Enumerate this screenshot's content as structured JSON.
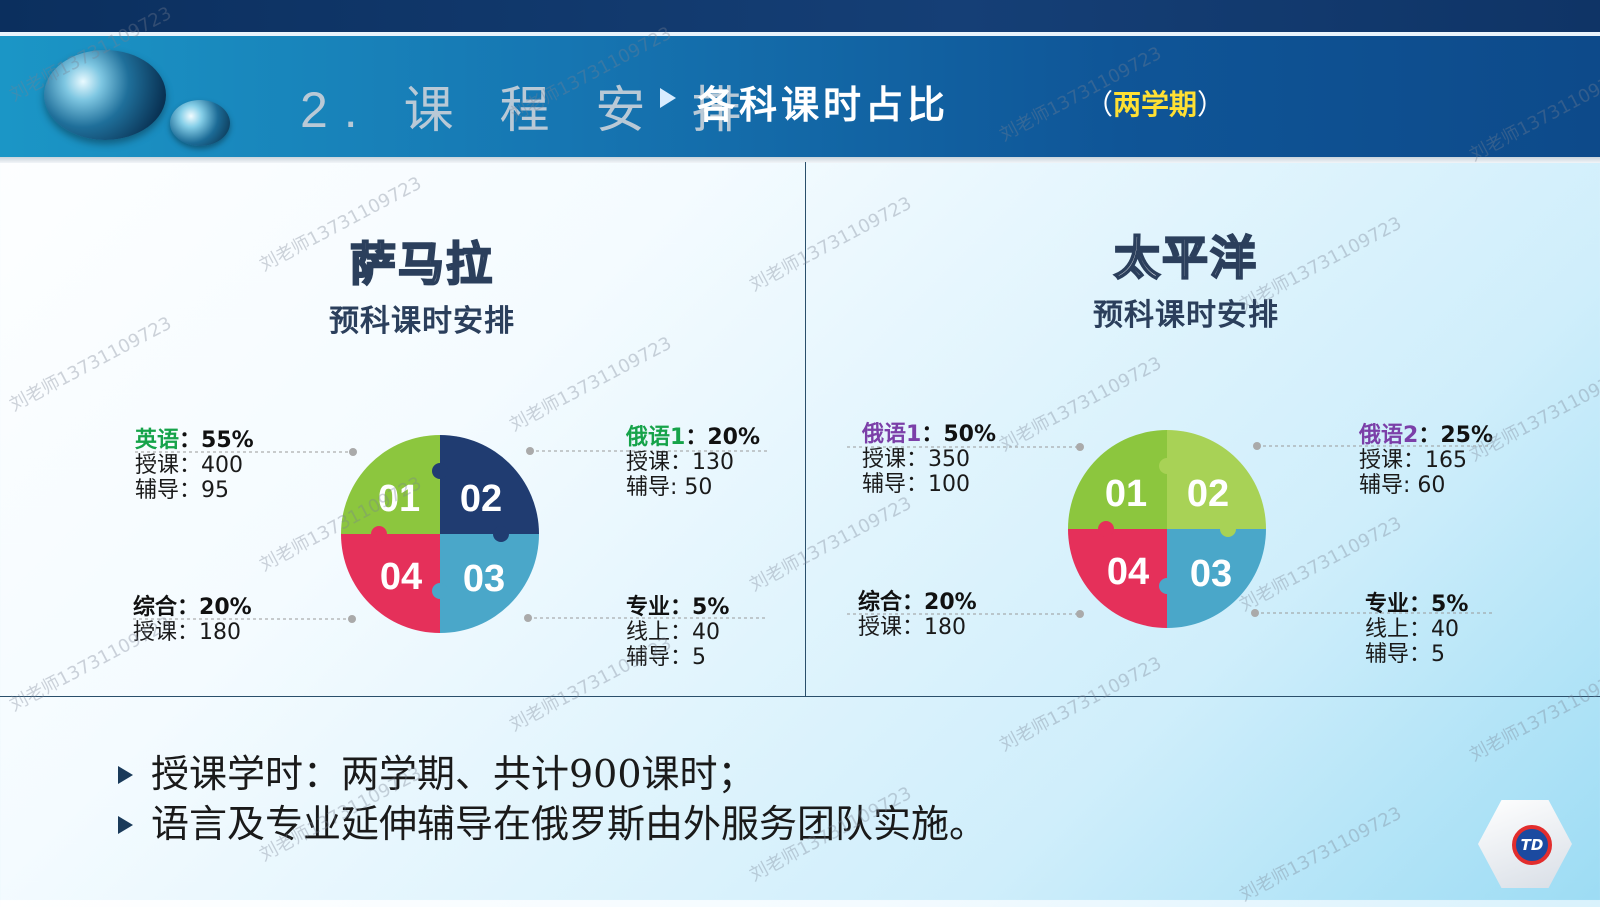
{
  "header": {
    "section_title": "2. 课 程 安 排",
    "subtitle": "各科课时占比",
    "subtitle_paren_open": "（",
    "subtitle_paren_text": "两学期",
    "subtitle_paren_close": "）"
  },
  "colors": {
    "green": "#8cc63e",
    "light_green": "#a8d256",
    "navy": "#203c71",
    "teal": "#4aa7c9",
    "red": "#e5305a",
    "label_green": "#16a34a",
    "label_purple": "#7b3fa8"
  },
  "campuses": [
    {
      "name": "萨马拉",
      "subtitle": "预科课时安排",
      "puzzle": {
        "pieces": [
          {
            "label": "01",
            "color": "#8cc63e"
          },
          {
            "label": "02",
            "color": "#203c71"
          },
          {
            "label": "03",
            "color": "#4aa7c9"
          },
          {
            "label": "04",
            "color": "#e5305a"
          }
        ]
      },
      "subjects": [
        {
          "name": "英语",
          "sep": "：",
          "percent": "55%",
          "lines": [
            "授课：400",
            "辅导：95"
          ]
        },
        {
          "name": "俄语1",
          "sep": "：",
          "percent": "20%",
          "lines": [
            "授课：130",
            "辅导:   50"
          ]
        },
        {
          "name": "专业",
          "sep": "：",
          "percent": "5%",
          "lines": [
            "线上：40",
            "辅导：5"
          ]
        },
        {
          "name": "综合",
          "sep": "：",
          "percent": "20%",
          "lines": [
            "授课：180"
          ]
        }
      ]
    },
    {
      "name": "太平洋",
      "subtitle": "预科课时安排",
      "puzzle": {
        "pieces": [
          {
            "label": "01",
            "color": "#8cc63e"
          },
          {
            "label": "02",
            "color": "#a8d256"
          },
          {
            "label": "03",
            "color": "#4aa7c9"
          },
          {
            "label": "04",
            "color": "#e5305a"
          }
        ]
      },
      "subjects": [
        {
          "name": "俄语1",
          "sep": "：",
          "percent": "50%",
          "lines": [
            "授课：350",
            "辅导：100"
          ]
        },
        {
          "name": "俄语2",
          "sep": "：",
          "percent": "25%",
          "lines": [
            "授课：165",
            "辅导:   60"
          ]
        },
        {
          "name": "专业",
          "sep": "：",
          "percent": "5%",
          "lines": [
            "线上：40",
            "辅导：5"
          ]
        },
        {
          "name": "综合",
          "sep": "：",
          "percent": "20%",
          "lines": [
            "授课：180"
          ]
        }
      ]
    }
  ],
  "bullets": [
    "授课学时：两学期、共计900课时；",
    "语言及专业延伸辅导在俄罗斯由外服务团队实施。"
  ],
  "logo": {
    "text": "TD"
  },
  "watermark": "刘老师13731109723"
}
